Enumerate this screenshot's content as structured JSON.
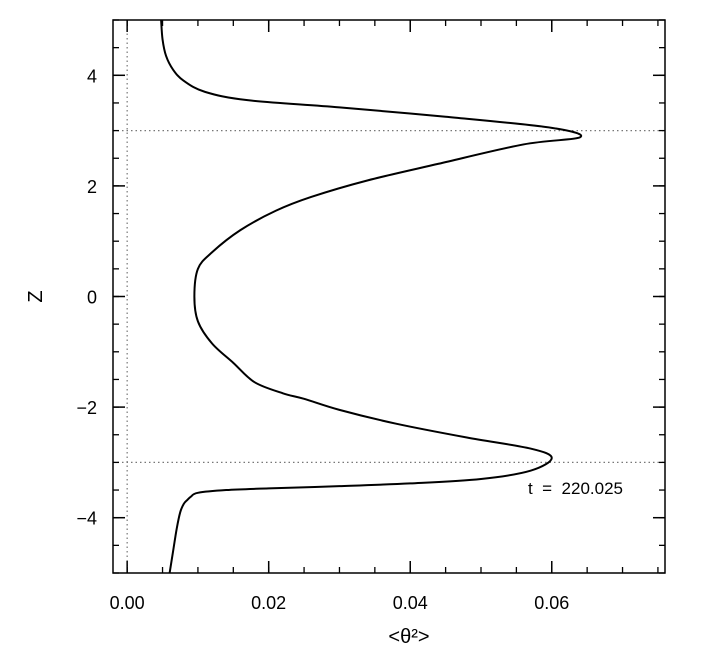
{
  "chart_data": {
    "type": "line",
    "xlabel": "<θ²>",
    "ylabel": "Z",
    "xlim": [
      -0.002,
      0.076
    ],
    "ylim": [
      -5,
      5
    ],
    "x_ticks": [
      {
        "value": 0.0,
        "label": "0.00"
      },
      {
        "value": 0.02,
        "label": "0.02"
      },
      {
        "value": 0.04,
        "label": "0.04"
      },
      {
        "value": 0.06,
        "label": "0.06"
      }
    ],
    "x_minor_step": 0.005,
    "y_ticks": [
      {
        "value": -4,
        "label": "−4"
      },
      {
        "value": -2,
        "label": "−2"
      },
      {
        "value": 0,
        "label": "0"
      },
      {
        "value": 2,
        "label": "2"
      },
      {
        "value": 4,
        "label": "4"
      }
    ],
    "y_minor_step": 0.5,
    "reference_lines": [
      {
        "orientation": "vertical",
        "value": 0.0
      },
      {
        "orientation": "horizontal",
        "value": 3.0
      },
      {
        "orientation": "horizontal",
        "value": -3.0
      }
    ],
    "annotation": "t  =  220.025",
    "series": [
      {
        "x": [
          0.006,
          0.0065,
          0.007,
          0.0075,
          0.008,
          0.0085,
          0.009,
          0.01,
          0.014,
          0.02,
          0.03,
          0.04,
          0.05,
          0.057,
          0.06,
          0.057,
          0.048,
          0.038,
          0.03,
          0.025,
          0.022,
          0.018,
          0.015,
          0.012,
          0.01,
          0.0095,
          0.01,
          0.012,
          0.016,
          0.021,
          0.026,
          0.034,
          0.044,
          0.056,
          0.064,
          0.06,
          0.045,
          0.03,
          0.017,
          0.011,
          0.008,
          0.0065,
          0.0055,
          0.005,
          0.0048
        ],
        "y": [
          -5.0,
          -4.6,
          -4.2,
          -3.9,
          -3.75,
          -3.68,
          -3.62,
          -3.55,
          -3.5,
          -3.47,
          -3.43,
          -3.38,
          -3.3,
          -3.15,
          -2.92,
          -2.75,
          -2.55,
          -2.3,
          -2.05,
          -1.85,
          -1.75,
          -1.55,
          -1.2,
          -0.85,
          -0.45,
          0.0,
          0.5,
          0.8,
          1.2,
          1.55,
          1.8,
          2.1,
          2.4,
          2.75,
          2.88,
          3.05,
          3.25,
          3.42,
          3.55,
          3.7,
          3.9,
          4.1,
          4.35,
          4.65,
          5.0
        ]
      }
    ]
  }
}
